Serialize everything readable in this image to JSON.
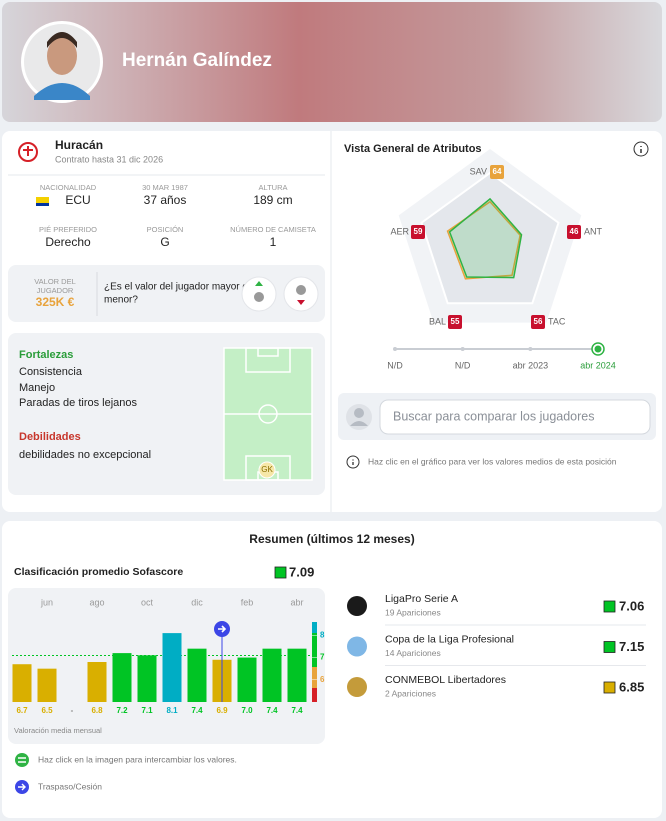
{
  "header": {
    "name": "Hernán Galíndez"
  },
  "team": {
    "name": "Huracán",
    "contract": "Contrato hasta 31 dic 2026"
  },
  "details": [
    {
      "label": "NACIONALIDAD",
      "value": "ECU"
    },
    {
      "label": "30 MAR 1987",
      "value": "37 años"
    },
    {
      "label": "ALTURA",
      "value": "189 cm"
    },
    {
      "label": "PIÉ PREFERIDO",
      "value": "Derecho"
    },
    {
      "label": "POSICIÓN",
      "value": "G"
    },
    {
      "label": "NÚMERO DE CAMISETA",
      "value": "1"
    }
  ],
  "market_value": {
    "label": [
      "VALOR DEL",
      "JUGADOR"
    ],
    "value": "325K €",
    "question": [
      "¿Es el valor del jugador mayor o",
      "menor?"
    ]
  },
  "strengths": {
    "title": "Fortalezas",
    "items": [
      "Consistencia",
      "Manejo",
      "Paradas de tiros lejanos"
    ]
  },
  "weaknesses": {
    "title": "Debilidades",
    "items": [
      "debilidades no excepcional"
    ]
  },
  "pitch": {
    "position": "GK"
  },
  "search": {
    "placeholder": "Buscar para comparar los jugadores",
    "hint": "Haz clic en el gráfico para ver los valores medios de esta posición"
  },
  "summary": {
    "title": "Resumen (últimos 12 meses)",
    "competitions": [
      {
        "name": "LigaPro Serie A",
        "apps": "19 Apariciones",
        "rating": 7.06,
        "color": "#00c424"
      },
      {
        "name": "Copa de la Liga Profesional",
        "apps": "14 Apariciones",
        "rating": 7.15,
        "color": "#00c424"
      },
      {
        "name": "CONMEBOL Libertadores",
        "apps": "2 Apariciones",
        "rating": 6.85,
        "color": "#d9af00"
      }
    ],
    "legend": [
      "Haz click en la imagen para intercambiar los valores.",
      "Traspaso/Cesión"
    ]
  },
  "chart_data": [
    {
      "type": "radar",
      "title": "Vista General de Atributos",
      "categories": [
        "SAV",
        "ANT",
        "TAC",
        "BAL",
        "AER"
      ],
      "series": [
        {
          "color": "#2fb344",
          "values": [
            64,
            46,
            56,
            55,
            59
          ]
        },
        {
          "color": "#e8a33c",
          "values": [
            60,
            44,
            52,
            58,
            62
          ]
        }
      ],
      "value_colors": [
        "#e8a33c",
        "#c8102e",
        "#c8102e",
        "#c8102e",
        "#c8102e"
      ],
      "rlim": [
        0,
        100
      ],
      "timeline": [
        "N/D",
        "N/D",
        "abr 2023",
        "abr 2024"
      ]
    },
    {
      "type": "bar",
      "title": "Clasificación promedio Sofascore",
      "categories": [
        null,
        "jun",
        null,
        "ago",
        null,
        "oct",
        null,
        "dic",
        null,
        "feb",
        null,
        "abr"
      ],
      "values": [
        6.7,
        6.5,
        null,
        6.8,
        7.2,
        7.1,
        8.1,
        7.4,
        6.9,
        7.0,
        7.4,
        7.4
      ],
      "value_labels": [
        "6.7",
        "6.5",
        "-",
        "6.8",
        "7.2",
        "7.1",
        "8.1",
        "7.4",
        "6.9",
        "7.0",
        "7.4",
        "7.4"
      ],
      "colors": [
        "#d9af00",
        "#d9af00",
        null,
        "#d9af00",
        "#00c424",
        "#00c424",
        "#00adc4",
        "#00c424",
        "#d9af00",
        "#00c424",
        "#00c424",
        "#00c424"
      ],
      "ylim": [
        5,
        8.6
      ],
      "yticks": [
        6,
        7,
        8
      ],
      "average": 7.09,
      "average_color": "#00c424",
      "caption": "Valoración media mensual"
    }
  ]
}
